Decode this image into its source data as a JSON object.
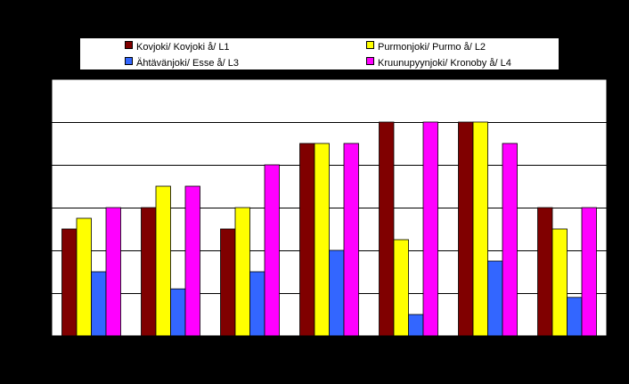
{
  "chart_data": {
    "type": "bar",
    "title": "",
    "xlabel": "",
    "ylabel": "",
    "categories": [
      "",
      "",
      "",
      "",
      "",
      "",
      ""
    ],
    "ylim": [
      0,
      12
    ],
    "grid": true,
    "legend_position": "top",
    "series": [
      {
        "name": "Kovjoki/ Kovjoki å/ L1",
        "color": "#800000",
        "values": [
          5,
          6,
          5,
          9,
          10,
          10,
          6
        ]
      },
      {
        "name": "Purmonjoki/ Purmo å/ L2",
        "color": "#FFFF00",
        "values": [
          5.5,
          7,
          6,
          9,
          4.5,
          10,
          5
        ]
      },
      {
        "name": "Ähtävänjoki/ Esse å/ L3",
        "color": "#3366FF",
        "values": [
          3,
          2.2,
          3,
          4,
          1,
          3.5,
          1.8
        ]
      },
      {
        "name": "Kruunupyynjoki/ Kronoby å/ L4",
        "color": "#FF00FF",
        "values": [
          6,
          7,
          8,
          9,
          10,
          9,
          6
        ]
      }
    ]
  }
}
